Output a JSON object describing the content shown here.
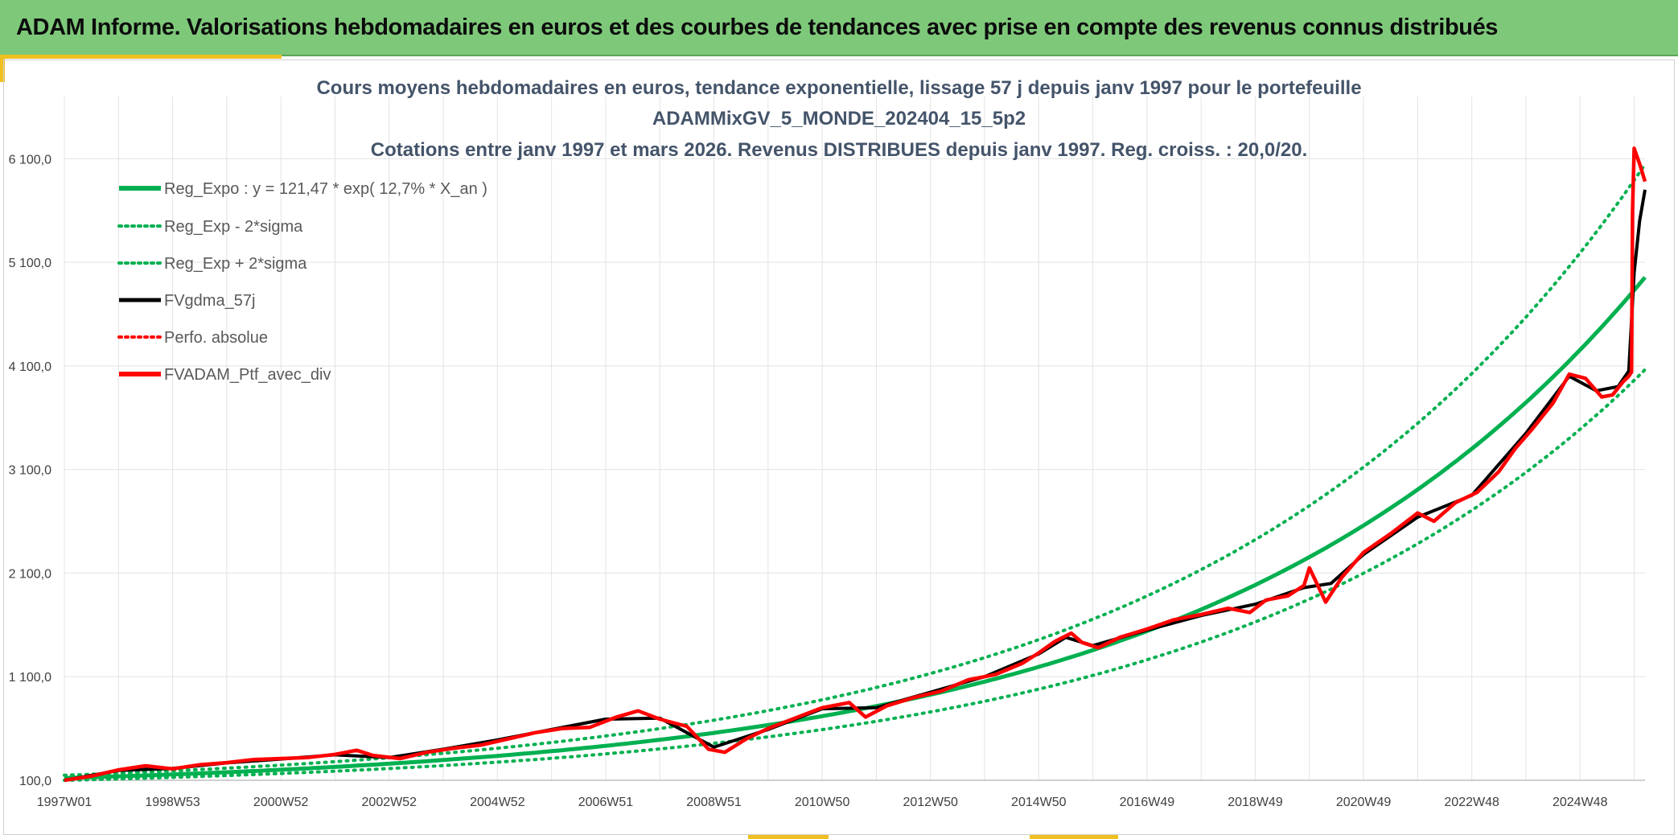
{
  "header": {
    "title": "ADAM Informe. Valorisations hebdomadaires en euros et des courbes de tendances avec prise en compte des revenus connus distribués"
  },
  "colors": {
    "header_bg": "#7ec87a",
    "accent": "#f0c020",
    "trend": "#00b050",
    "mma": "#000000",
    "portfolio": "#ff0000",
    "grid": "#e3e3e3"
  },
  "chart_data": {
    "type": "line",
    "title_lines": [
      "Cours moyens hebdomadaires en euros, tendance exponentielle, lissage 57 j depuis janv 1997 pour le portefeuille",
      "ADAMMixGV_5_MONDE_202404_15_5p2",
      "Cotations entre janv 1997 et mars 2026. Revenus DISTRIBUES depuis janv 1997. Reg. croiss. : 20,0/20."
    ],
    "x_tick_labels": [
      "1997W01",
      "1998W53",
      "2000W52",
      "2002W52",
      "2004W52",
      "2006W51",
      "2008W51",
      "2010W50",
      "2012W50",
      "2014W50",
      "2016W49",
      "2018W49",
      "2020W49",
      "2022W48",
      "2024W48"
    ],
    "x_tick_years": [
      1997.0,
      1999.0,
      2001.0,
      2003.0,
      2005.0,
      2007.0,
      2009.0,
      2011.0,
      2013.0,
      2015.0,
      2017.0,
      2019.0,
      2021.0,
      2023.0,
      2025.0
    ],
    "xlim": [
      1997.0,
      2026.2
    ],
    "y_ticks": [
      100,
      1100,
      2100,
      3100,
      4100,
      5100,
      6100
    ],
    "y_tick_labels": [
      "100,0",
      "1 100,0",
      "2 100,0",
      "3 100,0",
      "4 100,0",
      "5 100,0",
      "6 100,0"
    ],
    "ylim": [
      100,
      6700
    ],
    "grid": true,
    "legend_position": "top-left",
    "legend": [
      {
        "label": "Reg_Expo : y = 121,47 * exp( 12,7% *  X_an )",
        "color": "#00b050",
        "style": "solid"
      },
      {
        "label": "Reg_Exp - 2*sigma",
        "color": "#00b050",
        "style": "dotted"
      },
      {
        "label": "Reg_Exp + 2*sigma",
        "color": "#00b050",
        "style": "dotted"
      },
      {
        "label": "FVgdma_57j",
        "color": "#000000",
        "style": "solid"
      },
      {
        "label": "Perfo. absolue",
        "color": "#ff0000",
        "style": "dotted"
      },
      {
        "label": "FVADAM_Ptf_avec_div",
        "color": "#ff0000",
        "style": "solid"
      }
    ],
    "regression": {
      "a": 121.47,
      "rate": 0.127,
      "upper_factor": 1.22,
      "lower_factor": 0.82
    },
    "series": [
      {
        "name": "FVADAM_Ptf_avec_div",
        "color": "#ff0000",
        "points": [
          [
            1997.0,
            100
          ],
          [
            1997.5,
            140
          ],
          [
            1998.0,
            200
          ],
          [
            1998.5,
            240
          ],
          [
            1999.0,
            210
          ],
          [
            1999.5,
            250
          ],
          [
            2000.0,
            270
          ],
          [
            2000.5,
            300
          ],
          [
            2001.0,
            310
          ],
          [
            2001.5,
            320
          ],
          [
            2002.0,
            350
          ],
          [
            2002.4,
            390
          ],
          [
            2002.7,
            340
          ],
          [
            2003.2,
            310
          ],
          [
            2003.7,
            370
          ],
          [
            2004.2,
            410
          ],
          [
            2004.7,
            440
          ],
          [
            2005.2,
            500
          ],
          [
            2005.7,
            560
          ],
          [
            2006.2,
            600
          ],
          [
            2006.7,
            610
          ],
          [
            2007.2,
            710
          ],
          [
            2007.6,
            770
          ],
          [
            2008.0,
            690
          ],
          [
            2008.5,
            620
          ],
          [
            2008.9,
            400
          ],
          [
            2009.2,
            370
          ],
          [
            2009.6,
            500
          ],
          [
            2010.0,
            600
          ],
          [
            2010.5,
            700
          ],
          [
            2011.0,
            800
          ],
          [
            2011.5,
            850
          ],
          [
            2011.8,
            710
          ],
          [
            2012.2,
            820
          ],
          [
            2012.7,
            900
          ],
          [
            2013.2,
            960
          ],
          [
            2013.7,
            1070
          ],
          [
            2014.2,
            1120
          ],
          [
            2014.7,
            1230
          ],
          [
            2015.0,
            1330
          ],
          [
            2015.3,
            1440
          ],
          [
            2015.6,
            1520
          ],
          [
            2015.8,
            1430
          ],
          [
            2016.1,
            1380
          ],
          [
            2016.5,
            1480
          ],
          [
            2017.0,
            1560
          ],
          [
            2017.5,
            1650
          ],
          [
            2018.0,
            1700
          ],
          [
            2018.5,
            1760
          ],
          [
            2018.9,
            1720
          ],
          [
            2019.2,
            1840
          ],
          [
            2019.6,
            1880
          ],
          [
            2019.9,
            1980
          ],
          [
            2020.0,
            2150
          ],
          [
            2020.3,
            1820
          ],
          [
            2020.6,
            2060
          ],
          [
            2021.0,
            2300
          ],
          [
            2021.5,
            2480
          ],
          [
            2022.0,
            2680
          ],
          [
            2022.3,
            2600
          ],
          [
            2022.7,
            2780
          ],
          [
            2023.1,
            2880
          ],
          [
            2023.5,
            3080
          ],
          [
            2023.8,
            3300
          ],
          [
            2024.1,
            3480
          ],
          [
            2024.5,
            3740
          ],
          [
            2024.8,
            4020
          ],
          [
            2025.1,
            3980
          ],
          [
            2025.4,
            3800
          ],
          [
            2025.6,
            3820
          ],
          [
            2025.8,
            3950
          ],
          [
            2025.9,
            4000
          ],
          [
            2025.95,
            4040
          ],
          [
            2025.97,
            5600
          ],
          [
            2026.0,
            6200
          ],
          [
            2026.1,
            6050
          ],
          [
            2026.2,
            5880
          ]
        ]
      },
      {
        "name": "FVgdma_57j",
        "color": "#000000",
        "points": [
          [
            1997.0,
            100
          ],
          [
            1998.0,
            195
          ],
          [
            1999.0,
            215
          ],
          [
            2000.0,
            268
          ],
          [
            2001.0,
            305
          ],
          [
            2002.0,
            345
          ],
          [
            2003.0,
            320
          ],
          [
            2004.0,
            400
          ],
          [
            2005.0,
            490
          ],
          [
            2006.0,
            590
          ],
          [
            2007.0,
            690
          ],
          [
            2008.0,
            700
          ],
          [
            2009.0,
            420
          ],
          [
            2010.0,
            590
          ],
          [
            2011.0,
            790
          ],
          [
            2012.0,
            800
          ],
          [
            2013.0,
            950
          ],
          [
            2014.0,
            1100
          ],
          [
            2015.0,
            1320
          ],
          [
            2015.5,
            1480
          ],
          [
            2016.0,
            1400
          ],
          [
            2017.0,
            1550
          ],
          [
            2018.0,
            1690
          ],
          [
            2019.0,
            1800
          ],
          [
            2019.9,
            1960
          ],
          [
            2020.4,
            2000
          ],
          [
            2021.0,
            2280
          ],
          [
            2022.0,
            2640
          ],
          [
            2023.0,
            2850
          ],
          [
            2024.0,
            3450
          ],
          [
            2024.8,
            4000
          ],
          [
            2025.3,
            3860
          ],
          [
            2025.7,
            3900
          ],
          [
            2025.9,
            4050
          ],
          [
            2026.0,
            5000
          ],
          [
            2026.1,
            5500
          ],
          [
            2026.2,
            5800
          ]
        ]
      }
    ]
  }
}
